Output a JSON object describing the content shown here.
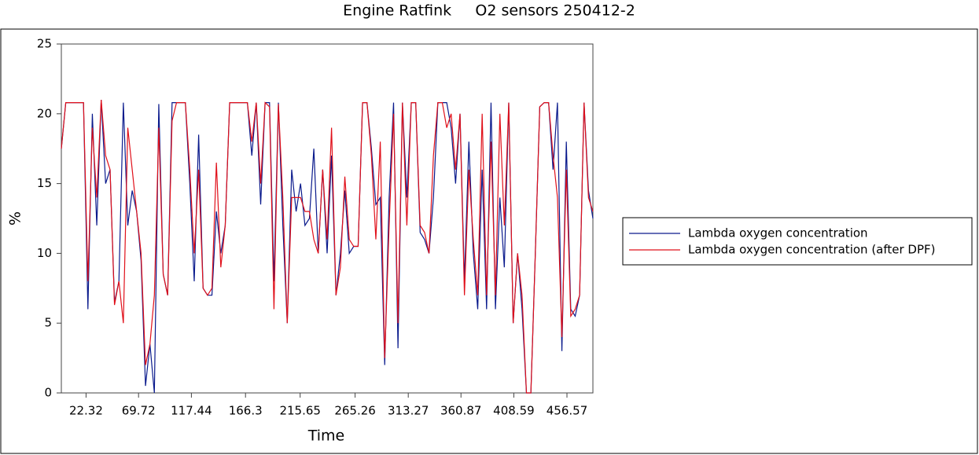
{
  "chart_data": {
    "type": "line",
    "title": "Engine Ratfink     O2 sensors 250412-2",
    "x_label": "Time",
    "y_label": "%",
    "x": [
      0,
      4,
      8,
      12,
      16,
      20,
      24,
      28,
      32,
      36,
      40,
      44,
      48,
      52,
      56,
      60,
      64,
      68,
      72,
      76,
      80,
      84,
      88,
      92,
      96,
      100,
      104,
      108,
      112,
      116,
      120,
      124,
      128,
      132,
      136,
      140,
      144,
      148,
      152,
      156,
      160,
      164,
      168,
      172,
      176,
      180,
      184,
      188,
      192,
      196,
      200,
      204,
      208,
      212,
      216,
      220,
      224,
      228,
      232,
      236,
      240,
      244,
      248,
      252,
      256,
      260,
      264,
      268,
      272,
      276,
      280,
      284,
      288,
      292,
      296,
      300,
      304,
      308,
      312,
      316,
      320,
      324,
      328,
      332,
      336,
      340,
      344,
      348,
      352,
      356,
      360,
      364,
      368,
      372,
      376,
      380,
      384,
      388,
      392,
      396,
      400,
      404,
      408,
      412,
      416,
      420,
      424,
      428,
      432,
      436,
      440,
      444,
      448,
      452,
      456,
      460,
      464,
      468,
      472,
      476,
      480
    ],
    "series": [
      {
        "name": "Lambda oxygen concentration",
        "color": "#0a1a8c",
        "values": [
          17.5,
          20.8,
          20.8,
          20.8,
          20.8,
          20.8,
          6,
          20,
          12,
          21,
          15,
          16,
          6.5,
          8,
          20.8,
          12,
          14.5,
          13,
          9.5,
          0.5,
          3.5,
          0,
          20.7,
          8.5,
          7,
          20.8,
          20.8,
          20.8,
          20.8,
          15,
          8,
          18.5,
          7.5,
          7,
          7,
          13,
          10,
          12,
          20.8,
          20.8,
          20.8,
          20.8,
          20.8,
          17,
          20.8,
          13.5,
          20.8,
          20.8,
          8,
          20.8,
          12,
          5,
          16,
          13,
          15,
          12,
          12.5,
          17.5,
          10,
          16,
          10,
          17,
          7,
          10,
          14.5,
          10,
          10.5,
          10.5,
          20.8,
          20.8,
          17.5,
          13.5,
          14,
          2,
          14,
          20.8,
          3.2,
          20.8,
          14,
          20.8,
          20.8,
          11.5,
          11,
          10,
          14,
          20.8,
          20.8,
          20.8,
          19,
          15,
          20,
          8,
          18,
          10,
          6,
          16,
          6,
          20.8,
          6,
          14,
          9,
          20.8,
          5,
          10,
          6,
          0,
          0,
          10,
          20.5,
          20.8,
          20.8,
          16,
          20.8,
          3,
          18,
          6,
          5.5,
          7,
          20.8,
          14.5,
          12.5
        ]
      },
      {
        "name": "Lambda oxygen concentration (after DPF)",
        "color": "#e0101a",
        "values": [
          17.5,
          20.8,
          20.8,
          20.8,
          20.8,
          20.8,
          8,
          19,
          14,
          21,
          17,
          16,
          6.3,
          8,
          5,
          19,
          16,
          13,
          10,
          2,
          3.5,
          7,
          19,
          8.5,
          7,
          19.5,
          20.8,
          20.8,
          20.8,
          16,
          10,
          16,
          7.5,
          7,
          7.5,
          16.5,
          9,
          12,
          20.8,
          20.8,
          20.8,
          20.8,
          20.8,
          18,
          20.8,
          15,
          20.8,
          20.5,
          6,
          20.7,
          14,
          5,
          14,
          14,
          14,
          13,
          13,
          11,
          10,
          16,
          11,
          19,
          7,
          9,
          15.5,
          11,
          10.5,
          10.5,
          20.8,
          20.8,
          17,
          11,
          18,
          2.5,
          12,
          20,
          5,
          20.8,
          12,
          20.8,
          20.8,
          12,
          11.5,
          10,
          17,
          20.8,
          20.8,
          19,
          20,
          16,
          20,
          7,
          16,
          11,
          7,
          20,
          7,
          18,
          7,
          20,
          12,
          20.8,
          5,
          10,
          7,
          0,
          0,
          10,
          20.5,
          20.8,
          20.8,
          17,
          14,
          4,
          16,
          5.5,
          6,
          7,
          20.8,
          14,
          13
        ]
      }
    ],
    "xlim": [
      0,
      480
    ],
    "xticks": [
      22.32,
      69.72,
      117.44,
      166.3,
      215.65,
      265.26,
      313.27,
      360.87,
      408.59,
      456.57
    ],
    "ylim": [
      0,
      25
    ],
    "yticks": [
      0,
      5,
      10,
      15,
      20,
      25
    ],
    "grid": false,
    "legend": "right"
  }
}
